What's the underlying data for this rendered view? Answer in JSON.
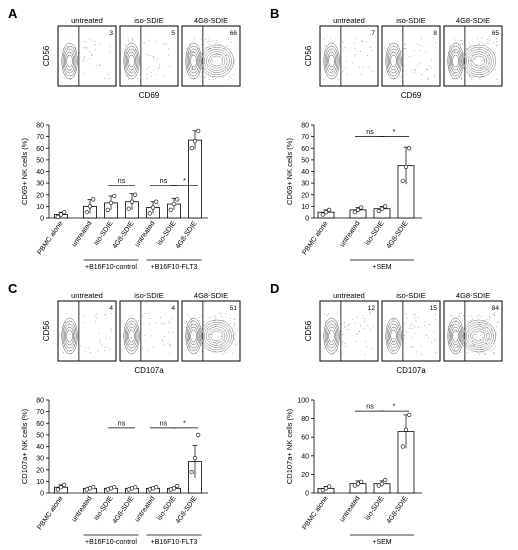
{
  "panels": [
    {
      "letter": "A",
      "flow": {
        "y_label": "CD56",
        "x_label": "CD69",
        "plots": [
          {
            "title": "untreated",
            "value": "3"
          },
          {
            "title": "iso-SDIE",
            "value": "5"
          },
          {
            "title": "4G8-SDIE",
            "value": "66"
          }
        ]
      }
    },
    {
      "letter": "B",
      "flow": {
        "y_label": "CD56",
        "x_label": "CD69",
        "plots": [
          {
            "title": "untreated",
            "value": "7"
          },
          {
            "title": "iso-SDIE",
            "value": "8"
          },
          {
            "title": "4G8-SDIE",
            "value": "65"
          }
        ]
      }
    },
    {
      "letter": "C",
      "flow": {
        "y_label": "CD56",
        "x_label": "CD107a",
        "plots": [
          {
            "title": "untreated",
            "value": "4"
          },
          {
            "title": "iso-SDIE",
            "value": "4"
          },
          {
            "title": "4G8-SDIE",
            "value": "51"
          }
        ]
      }
    },
    {
      "letter": "D",
      "flow": {
        "y_label": "CD56",
        "x_label": "CD107a",
        "plots": [
          {
            "title": "untreated",
            "value": "12"
          },
          {
            "title": "iso-SDIE",
            "value": "15"
          },
          {
            "title": "4G8-SDIE",
            "value": "84"
          }
        ]
      }
    }
  ],
  "chart_data": [
    {
      "panel": "A",
      "type": "bar",
      "ylabel": "CD69+ NK cells (%)",
      "ylim": [
        0,
        80
      ],
      "yticks": [
        0,
        10,
        20,
        30,
        40,
        50,
        60,
        70,
        80
      ],
      "categories": [
        "PBMC alone",
        "untreated",
        "iso-SDIE",
        "4G8-SDIE",
        "untreated",
        "iso-SDIE",
        "4G8-SDIE"
      ],
      "values": [
        3,
        10,
        13,
        14,
        9,
        12,
        67
      ],
      "errors": [
        2,
        6,
        6,
        7,
        5,
        5,
        8
      ],
      "points": [
        [
          1,
          3,
          5
        ],
        [
          5,
          10,
          16
        ],
        [
          7,
          13,
          19
        ],
        [
          8,
          14,
          20
        ],
        [
          4,
          9,
          14
        ],
        [
          7,
          12,
          16
        ],
        [
          60,
          66,
          75
        ]
      ],
      "groups": [
        {
          "label": "+B16F10-control",
          "from": 1,
          "to": 3
        },
        {
          "label": "+B16F10-FLT3",
          "from": 4,
          "to": 6
        }
      ],
      "significance": [
        {
          "from": 2,
          "to": 3,
          "label": "ns",
          "y": 28
        },
        {
          "from": 4,
          "to": 5,
          "label": "ns",
          "y": 28
        },
        {
          "from": 5,
          "to": 6,
          "label": "*",
          "y": 28
        }
      ]
    },
    {
      "panel": "B",
      "type": "bar",
      "ylabel": "CD69+ NK cells (%)",
      "ylim": [
        0,
        80
      ],
      "yticks": [
        0,
        10,
        20,
        30,
        40,
        50,
        60,
        70,
        80
      ],
      "categories": [
        "PBMC alone",
        "untreated",
        "iso-SDIE",
        "4G8-SDIE"
      ],
      "values": [
        5,
        7,
        8,
        45
      ],
      "errors": [
        2,
        2,
        2,
        16
      ],
      "points": [
        [
          3,
          5,
          7
        ],
        [
          5,
          7,
          9
        ],
        [
          6,
          8,
          10
        ],
        [
          32,
          44,
          60
        ]
      ],
      "groups": [
        {
          "label": "+SEM",
          "from": 1,
          "to": 3
        }
      ],
      "significance": [
        {
          "from": 1,
          "to": 2,
          "label": "ns",
          "y": 70
        },
        {
          "from": 2,
          "to": 3,
          "label": "*",
          "y": 70
        }
      ]
    },
    {
      "panel": "C",
      "type": "bar",
      "ylabel": "CD107a+ NK cells (%)",
      "ylim": [
        0,
        80
      ],
      "yticks": [
        0,
        10,
        20,
        30,
        40,
        50,
        60,
        70,
        80
      ],
      "categories": [
        "PBMC alone",
        "untreated",
        "iso-SDIE",
        "4G8-SDIE",
        "untreated",
        "iso-SDIE",
        "4G8-SDIE"
      ],
      "values": [
        5,
        4,
        4,
        4,
        4,
        4,
        27
      ],
      "errors": [
        2,
        1,
        1,
        1,
        1,
        1,
        14
      ],
      "points": [
        [
          3,
          5,
          7
        ],
        [
          3,
          4,
          5
        ],
        [
          3,
          4,
          5
        ],
        [
          3,
          4,
          5
        ],
        [
          3,
          4,
          5
        ],
        [
          3,
          4,
          6
        ],
        [
          18,
          30,
          50
        ]
      ],
      "groups": [
        {
          "label": "+B16F10-control",
          "from": 1,
          "to": 3
        },
        {
          "label": "+B16F10-FLT3",
          "from": 4,
          "to": 6
        }
      ],
      "significance": [
        {
          "from": 2,
          "to": 3,
          "label": "ns",
          "y": 56
        },
        {
          "from": 4,
          "to": 5,
          "label": "ns",
          "y": 56
        },
        {
          "from": 5,
          "to": 6,
          "label": "*",
          "y": 56
        }
      ]
    },
    {
      "panel": "D",
      "type": "bar",
      "ylabel": "CD107a+ NK cells (%)",
      "ylim": [
        0,
        100
      ],
      "yticks": [
        0,
        20,
        40,
        60,
        80,
        100
      ],
      "categories": [
        "PBMC alone",
        "untreated",
        "iso-SDIE",
        "4G8-SDIE"
      ],
      "values": [
        5,
        10,
        10,
        66
      ],
      "errors": [
        2,
        3,
        3,
        18
      ],
      "points": [
        [
          3,
          5,
          7
        ],
        [
          8,
          10,
          12
        ],
        [
          8,
          10,
          14
        ],
        [
          50,
          68,
          84
        ]
      ],
      "groups": [
        {
          "label": "+SEM",
          "from": 1,
          "to": 3
        }
      ],
      "significance": [
        {
          "from": 1,
          "to": 2,
          "label": "ns",
          "y": 88
        },
        {
          "from": 2,
          "to": 3,
          "label": "*",
          "y": 88
        }
      ]
    }
  ]
}
